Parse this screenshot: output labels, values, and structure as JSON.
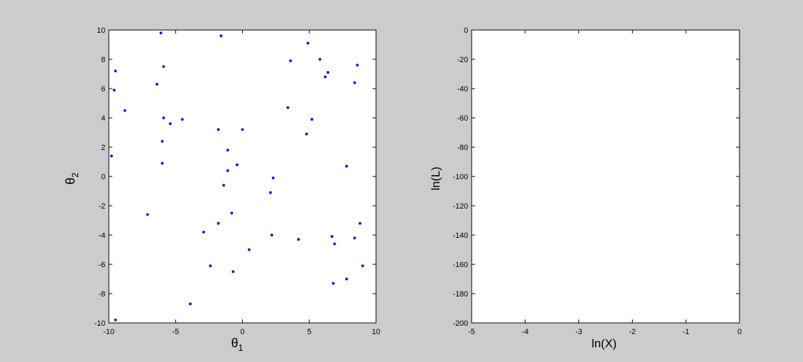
{
  "colors": {
    "figure_bg": "#cccccc",
    "axes_bg": "#ffffff",
    "marker": "#1414e6",
    "axis": "#000000"
  },
  "chart_data": [
    {
      "type": "scatter",
      "xlabel_main": "θ",
      "xlabel_sub": "1",
      "ylabel_main": "θ",
      "ylabel_sub": "2",
      "xlim": [
        -10,
        10
      ],
      "ylim": [
        -10,
        10
      ],
      "xticks": [
        -10,
        -5,
        0,
        5,
        10
      ],
      "yticks": [
        -10,
        -8,
        -6,
        -4,
        -2,
        0,
        2,
        4,
        6,
        8,
        10
      ],
      "grid": false,
      "points": [
        {
          "x": -6.1,
          "y": 9.8
        },
        {
          "x": -1.6,
          "y": 9.6
        },
        {
          "x": 4.9,
          "y": 9.1
        },
        {
          "x": 5.8,
          "y": 8.0
        },
        {
          "x": 3.6,
          "y": 7.9
        },
        {
          "x": -9.5,
          "y": 7.2
        },
        {
          "x": -5.9,
          "y": 7.5
        },
        {
          "x": 8.6,
          "y": 7.6
        },
        {
          "x": 6.4,
          "y": 7.1
        },
        {
          "x": 6.2,
          "y": 6.8
        },
        {
          "x": -6.4,
          "y": 6.3
        },
        {
          "x": 8.4,
          "y": 6.4
        },
        {
          "x": -9.6,
          "y": 5.9
        },
        {
          "x": -8.8,
          "y": 4.5
        },
        {
          "x": 3.4,
          "y": 4.7
        },
        {
          "x": -5.9,
          "y": 4.0
        },
        {
          "x": -4.5,
          "y": 3.9
        },
        {
          "x": -5.4,
          "y": 3.6
        },
        {
          "x": 5.2,
          "y": 3.9
        },
        {
          "x": -1.8,
          "y": 3.2
        },
        {
          "x": 0.0,
          "y": 3.2
        },
        {
          "x": 4.8,
          "y": 2.9
        },
        {
          "x": -6.0,
          "y": 2.4
        },
        {
          "x": -1.1,
          "y": 1.8
        },
        {
          "x": -9.8,
          "y": 1.4
        },
        {
          "x": -6.0,
          "y": 0.9
        },
        {
          "x": -0.4,
          "y": 0.8
        },
        {
          "x": -1.1,
          "y": 0.4
        },
        {
          "x": 2.3,
          "y": -0.1
        },
        {
          "x": -1.4,
          "y": -0.6
        },
        {
          "x": 2.1,
          "y": -1.1
        },
        {
          "x": -0.8,
          "y": -2.5
        },
        {
          "x": -7.1,
          "y": -2.6
        },
        {
          "x": -1.8,
          "y": -3.2
        },
        {
          "x": 8.8,
          "y": -3.2
        },
        {
          "x": -2.9,
          "y": -3.8
        },
        {
          "x": 2.2,
          "y": -4.0
        },
        {
          "x": 6.7,
          "y": -4.1
        },
        {
          "x": 8.4,
          "y": -4.2
        },
        {
          "x": 4.2,
          "y": -4.3
        },
        {
          "x": 6.9,
          "y": -4.6
        },
        {
          "x": 0.5,
          "y": -5.0
        },
        {
          "x": -2.4,
          "y": -6.1
        },
        {
          "x": 9.0,
          "y": -6.1
        },
        {
          "x": -0.7,
          "y": -6.5
        },
        {
          "x": 7.8,
          "y": -7.0
        },
        {
          "x": 6.8,
          "y": -7.3
        },
        {
          "x": -3.9,
          "y": -8.7
        },
        {
          "x": -9.5,
          "y": -9.8
        },
        {
          "x": 7.8,
          "y": 0.7
        }
      ]
    },
    {
      "type": "line",
      "xlabel": "ln(X)",
      "ylabel": "ln(L)",
      "xlim": [
        -5,
        0
      ],
      "ylim": [
        -200,
        0
      ],
      "xticks": [
        -5,
        -4,
        -3,
        -2,
        -1,
        0
      ],
      "yticks": [
        -200,
        -180,
        -160,
        -140,
        -120,
        -100,
        -80,
        -60,
        -40,
        -20,
        0
      ],
      "grid": false,
      "series": []
    }
  ]
}
